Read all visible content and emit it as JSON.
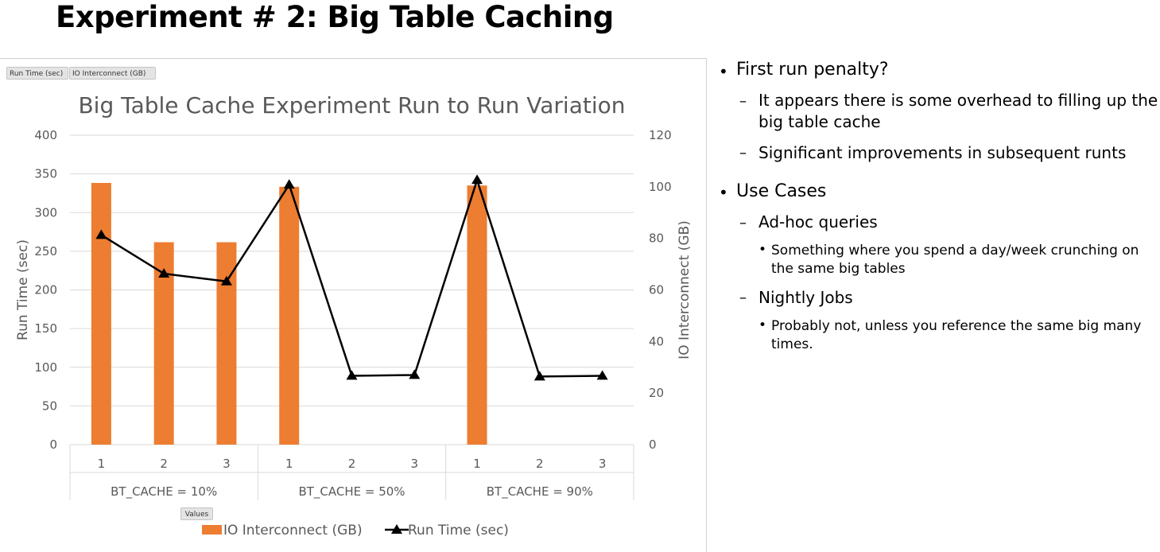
{
  "slide": {
    "title": "Experiment # 2: Big Table Caching"
  },
  "pivot_buttons": {
    "run_time": "Run Time (sec)",
    "io_interconnect": "IO Interconnect (GB)",
    "values": "Values"
  },
  "colors": {
    "bar": "#ed7d31",
    "line": "#000000",
    "grid": "#d9d9d9",
    "axis_text": "#595959"
  },
  "chart_data": {
    "type": "bar",
    "title": "Big Table Cache Experiment Run to Run Variation",
    "categories": [
      "1",
      "2",
      "3",
      "1",
      "2",
      "3",
      "1",
      "2",
      "3"
    ],
    "groups": [
      "BT_CACHE = 10%",
      "BT_CACHE = 50%",
      "BT_CACHE = 90%"
    ],
    "ylabel": "Run Time (sec)",
    "y2label": "IO Interconnect (GB)",
    "ylim": [
      0,
      400
    ],
    "y2lim": [
      0,
      120
    ],
    "yticks": [
      "0",
      "50",
      "100",
      "150",
      "200",
      "250",
      "300",
      "350",
      "400"
    ],
    "y2ticks": [
      "0",
      "20",
      "40",
      "60",
      "80",
      "100",
      "120"
    ],
    "grid": true,
    "legend_position": "bottom",
    "series": [
      {
        "name": "IO Interconnect (GB)",
        "type": "bar",
        "axis": "right",
        "values": [
          101.5,
          78.5,
          78.5,
          100,
          0,
          0,
          100.5,
          0,
          0
        ]
      },
      {
        "name": "Run Time (sec)",
        "type": "line",
        "axis": "left",
        "marker": "triangle",
        "values": [
          271,
          221,
          211,
          336,
          89,
          90,
          342,
          88,
          89
        ]
      }
    ]
  },
  "bullets": [
    {
      "level": 1,
      "text": "First run penalty?"
    },
    {
      "level": 2,
      "text": "It appears there is some overhead to filling up the big table cache"
    },
    {
      "level": 2,
      "text": "Significant improvements in subsequent runts"
    },
    {
      "level": 1,
      "text": "Use Cases"
    },
    {
      "level": 2,
      "text": "Ad-hoc queries"
    },
    {
      "level": 3,
      "text": "Something where you spend a day/week crunching on the same big tables"
    },
    {
      "level": 2,
      "text": "Nightly Jobs"
    },
    {
      "level": 3,
      "text": "Probably not, unless you reference the same big many times."
    }
  ]
}
